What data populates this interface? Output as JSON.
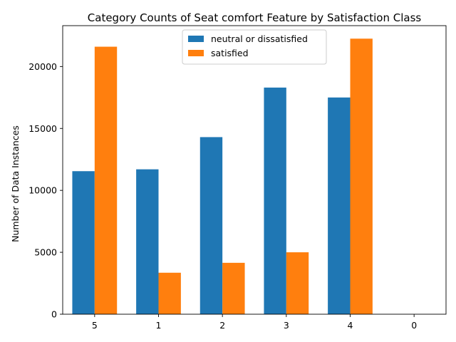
{
  "chart_data": {
    "type": "bar",
    "title": "Category Counts of Seat comfort Feature by Satisfaction Class",
    "xlabel": "",
    "ylabel": "Number of Data Instances",
    "categories": [
      "5",
      "1",
      "2",
      "3",
      "4",
      "0"
    ],
    "series": [
      {
        "name": "neutral or dissatisfied",
        "color": "#1f77b4",
        "values": [
          11550,
          11700,
          14300,
          18300,
          17500,
          0
        ]
      },
      {
        "name": "satisfied",
        "color": "#ff7f0e",
        "values": [
          21600,
          3350,
          4150,
          5000,
          22250,
          0
        ]
      }
    ],
    "ylim": [
      0,
      23300
    ],
    "yticks": [
      0,
      5000,
      10000,
      15000,
      20000
    ],
    "grid": false,
    "legend_position": "upper-center"
  }
}
